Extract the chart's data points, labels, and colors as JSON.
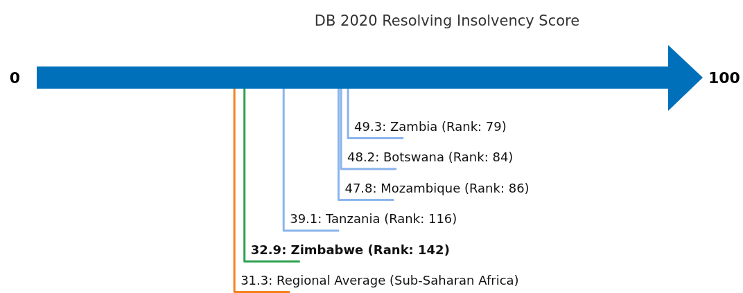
{
  "chart_data": {
    "type": "other",
    "title": "DB 2020 Resolving Insolvency Score",
    "categories": [
      "Zambia (Rank: 79)",
      "Botswana (Rank: 84)",
      "Mozambique (Rank: 86)",
      "Tanzania (Rank: 116)",
      "Zimbabwe (Rank: 142)",
      "Regional Average (Sub-Saharan Africa)"
    ],
    "series": [
      {
        "color": "#8ab4ec",
        "values": [
          49.3,
          48.2,
          47.8,
          39.1,
          null,
          null
        ],
        "value_labels": [
          "49.3:",
          "48.2:",
          "47.8:",
          "39.1:",
          null,
          null
        ]
      },
      {
        "color": "#f5821f",
        "values": [
          null,
          null,
          null,
          null,
          null,
          31.3
        ],
        "value_labels": [
          null,
          null,
          null,
          null,
          null,
          "31.3:"
        ]
      },
      {
        "color": "#2ca04c",
        "values": [
          null,
          null,
          null,
          null,
          32.9,
          null
        ],
        "value_labels": [
          null,
          null,
          null,
          null,
          "32.9:",
          null
        ]
      }
    ],
    "annotations": [
      "0",
      "100"
    ]
  }
}
